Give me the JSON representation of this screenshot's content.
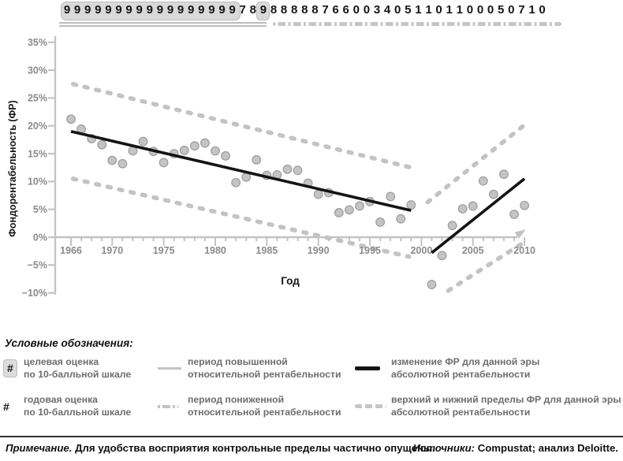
{
  "colors": {
    "grey_line": "#c3c3c3",
    "dot_fill": "#c4c4c4",
    "dot_stroke": "#9c9c9c",
    "black_line": "#141414",
    "tick_label": "#8b8b8b",
    "axis_text": "#151515",
    "box_fill": "#d9d9d9"
  },
  "top_strip": {
    "digits": "99999999999999999789888887660034051101100050710",
    "era1_boxed_digits": "99999999999999999",
    "era2_boxed_digit": "9",
    "era1_underline_style": "solid",
    "era2_underline_style": "dash-dot"
  },
  "chart_data": {
    "type": "scatter",
    "title": "",
    "xlabel": "Год",
    "ylabel": "Фондорентабельность (ФР)",
    "x_ticks": [
      1966,
      1970,
      1975,
      1980,
      1985,
      1990,
      1995,
      2000,
      2005,
      2010
    ],
    "x_minor_tick_step": 1,
    "y_tick_values": [
      35,
      30,
      25,
      20,
      15,
      10,
      5,
      0,
      -5,
      -10
    ],
    "y_tick_labels": [
      "35%",
      "30%",
      "25%",
      "20%",
      "15%",
      "10%",
      "5%",
      "0%",
      "−5%",
      "−10%"
    ],
    "xlim": [
      1965,
      2011
    ],
    "ylim": [
      -10,
      35
    ],
    "grid": false,
    "legend_position": "below",
    "points": [
      [
        1966,
        21.2
      ],
      [
        1967,
        19.4
      ],
      [
        1968,
        17.7
      ],
      [
        1969,
        16.6
      ],
      [
        1970,
        13.8
      ],
      [
        1971,
        13.2
      ],
      [
        1972,
        15.5
      ],
      [
        1973,
        17.2
      ],
      [
        1974,
        15.4
      ],
      [
        1975,
        13.4
      ],
      [
        1976,
        15.0
      ],
      [
        1977,
        15.6
      ],
      [
        1978,
        16.4
      ],
      [
        1979,
        16.9
      ],
      [
        1980,
        15.5
      ],
      [
        1981,
        14.6
      ],
      [
        1982,
        9.8
      ],
      [
        1983,
        10.8
      ],
      [
        1984,
        13.9
      ],
      [
        1985,
        11.1
      ],
      [
        1986,
        11.2
      ],
      [
        1987,
        12.2
      ],
      [
        1988,
        12.0
      ],
      [
        1989,
        9.7
      ],
      [
        1990,
        7.7
      ],
      [
        1991,
        8.0
      ],
      [
        1992,
        4.4
      ],
      [
        1993,
        4.9
      ],
      [
        1994,
        5.6
      ],
      [
        1995,
        6.4
      ],
      [
        1996,
        2.7
      ],
      [
        1997,
        7.3
      ],
      [
        1998,
        3.3
      ],
      [
        1999,
        5.8
      ],
      [
        2001,
        -8.5
      ],
      [
        2002,
        -3.3
      ],
      [
        2003,
        2.1
      ],
      [
        2004,
        5.1
      ],
      [
        2005,
        5.6
      ],
      [
        2006,
        10.1
      ],
      [
        2007,
        7.7
      ],
      [
        2008,
        11.3
      ],
      [
        2009,
        4.1
      ],
      [
        2010,
        5.7
      ]
    ],
    "lines": {
      "era1_trend": {
        "x": [
          1966,
          1999
        ],
        "y": [
          19.0,
          4.8
        ],
        "style": "solid-black"
      },
      "era2_trend": {
        "x": [
          2001,
          2010
        ],
        "y": [
          -2.8,
          10.5
        ],
        "style": "solid-black"
      },
      "era1_upper_limit": {
        "x": [
          1966.2,
          1998.8
        ],
        "y": [
          27.5,
          12.6
        ],
        "style": "dashed-grey"
      },
      "era1_lower_limit": {
        "x": [
          1966.2,
          1998.8
        ],
        "y": [
          10.5,
          -3.5
        ],
        "style": "dashed-grey"
      },
      "era2_upper_limit": {
        "x": [
          2000.6,
          2010.1
        ],
        "y": [
          6.3,
          20.3
        ],
        "style": "dashed-grey"
      },
      "era2_lower_limit": {
        "x": [
          2002.6,
          2010.3
        ],
        "y": [
          -9.6,
          -0.5
        ],
        "style": "dashed-grey"
      }
    }
  },
  "legend": {
    "header": "Условные обозначения:",
    "items": [
      {
        "swatch": "hash-boxed",
        "symbol": "#",
        "lines": [
          "целевая оценка",
          "по 10-балльной шкале"
        ]
      },
      {
        "swatch": "hash",
        "symbol": "#",
        "lines": [
          "годовая оценка",
          "по 10-балльной шкале"
        ]
      },
      {
        "swatch": "line-solid-grey",
        "lines": [
          "период повышенной",
          "относительной рентабельности"
        ]
      },
      {
        "swatch": "line-dashed-grey",
        "lines": [
          "период пониженной",
          "относительной рентабельности"
        ]
      },
      {
        "swatch": "line-solid-black",
        "lines": [
          "изменение ФР для данной эры",
          "абсолютной рентабельности"
        ]
      },
      {
        "swatch": "line-dashed-thick",
        "lines": [
          "верхний и нижний пределы ФР для данной эры",
          "абсолютной рентабельности"
        ]
      }
    ]
  },
  "footer": {
    "note_prefix": "Примечание.",
    "note_rest": " Для удобства восприятия контрольные пределы частично опущены.",
    "sources_prefix": "Источники:",
    "sources_rest": " Compustat; анализ Deloitte."
  }
}
